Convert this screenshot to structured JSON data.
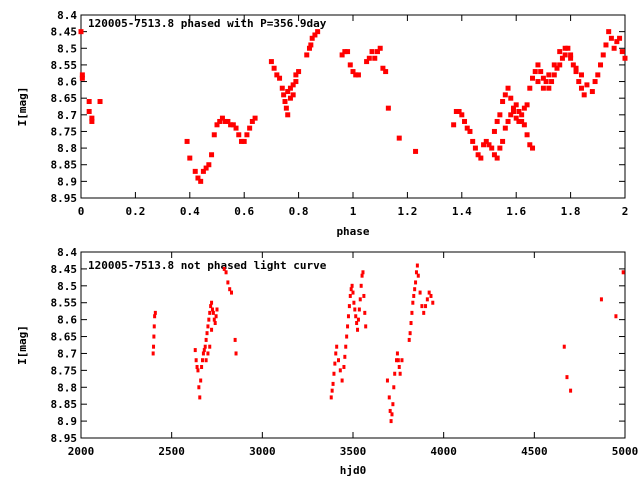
{
  "chart_data": [
    {
      "type": "scatter",
      "title": "120005-7513.8 phased with P=356.9day",
      "xlabel": "phase",
      "ylabel": "I[mag]",
      "xlim": [
        0,
        2
      ],
      "ylim": [
        8.4,
        8.95
      ],
      "y_inverted": true,
      "grid": false,
      "marker_color": "#ff0000",
      "xticks": [
        0,
        0.2,
        0.4,
        0.6,
        0.8,
        1,
        1.2,
        1.4,
        1.6,
        1.8,
        2
      ],
      "xtick_labels": [
        "0",
        "0.2",
        "0.4",
        "0.6",
        "0.8",
        "1",
        "1.2",
        "1.4",
        "1.6",
        "1.8",
        "2"
      ],
      "yticks": [
        8.4,
        8.45,
        8.5,
        8.55,
        8.6,
        8.65,
        8.7,
        8.75,
        8.8,
        8.85,
        8.9,
        8.95
      ],
      "ytick_labels": [
        "8.4",
        "8.45",
        "8.5",
        "8.55",
        "8.6",
        "8.65",
        "8.7",
        "8.75",
        "8.8",
        "8.85",
        "8.9",
        "8.95"
      ],
      "points": [
        [
          0.0,
          8.45
        ],
        [
          0.005,
          8.58
        ],
        [
          0.005,
          8.59
        ],
        [
          0.03,
          8.66
        ],
        [
          0.03,
          8.69
        ],
        [
          0.04,
          8.71
        ],
        [
          0.04,
          8.72
        ],
        [
          0.07,
          8.66
        ],
        [
          0.39,
          8.78
        ],
        [
          0.4,
          8.83
        ],
        [
          0.42,
          8.87
        ],
        [
          0.43,
          8.89
        ],
        [
          0.44,
          8.9
        ],
        [
          0.45,
          8.87
        ],
        [
          0.46,
          8.86
        ],
        [
          0.47,
          8.85
        ],
        [
          0.48,
          8.82
        ],
        [
          0.49,
          8.76
        ],
        [
          0.5,
          8.73
        ],
        [
          0.51,
          8.72
        ],
        [
          0.52,
          8.71
        ],
        [
          0.53,
          8.72
        ],
        [
          0.54,
          8.72
        ],
        [
          0.55,
          8.73
        ],
        [
          0.56,
          8.73
        ],
        [
          0.57,
          8.74
        ],
        [
          0.58,
          8.76
        ],
        [
          0.59,
          8.78
        ],
        [
          0.6,
          8.78
        ],
        [
          0.61,
          8.76
        ],
        [
          0.62,
          8.74
        ],
        [
          0.63,
          8.72
        ],
        [
          0.64,
          8.71
        ],
        [
          0.7,
          8.54
        ],
        [
          0.71,
          8.56
        ],
        [
          0.72,
          8.58
        ],
        [
          0.73,
          8.59
        ],
        [
          0.74,
          8.62
        ],
        [
          0.745,
          8.64
        ],
        [
          0.75,
          8.66
        ],
        [
          0.755,
          8.68
        ],
        [
          0.76,
          8.7
        ],
        [
          0.76,
          8.63
        ],
        [
          0.77,
          8.65
        ],
        [
          0.77,
          8.62
        ],
        [
          0.78,
          8.64
        ],
        [
          0.78,
          8.61
        ],
        [
          0.79,
          8.6
        ],
        [
          0.79,
          8.58
        ],
        [
          0.8,
          8.57
        ],
        [
          0.83,
          8.52
        ],
        [
          0.84,
          8.5
        ],
        [
          0.845,
          8.49
        ],
        [
          0.85,
          8.47
        ],
        [
          0.86,
          8.46
        ],
        [
          0.87,
          8.45
        ],
        [
          0.96,
          8.52
        ],
        [
          0.97,
          8.51
        ],
        [
          0.98,
          8.51
        ],
        [
          0.99,
          8.55
        ],
        [
          1.0,
          8.57
        ],
        [
          1.01,
          8.58
        ],
        [
          1.02,
          8.58
        ],
        [
          1.05,
          8.54
        ],
        [
          1.06,
          8.53
        ],
        [
          1.07,
          8.51
        ],
        [
          1.08,
          8.53
        ],
        [
          1.09,
          8.51
        ],
        [
          1.1,
          8.5
        ],
        [
          1.11,
          8.56
        ],
        [
          1.12,
          8.57
        ],
        [
          1.13,
          8.68
        ],
        [
          1.17,
          8.77
        ],
        [
          1.23,
          8.81
        ],
        [
          1.37,
          8.73
        ],
        [
          1.38,
          8.69
        ],
        [
          1.39,
          8.69
        ],
        [
          1.4,
          8.7
        ],
        [
          1.41,
          8.72
        ],
        [
          1.42,
          8.74
        ],
        [
          1.43,
          8.75
        ],
        [
          1.44,
          8.78
        ],
        [
          1.45,
          8.8
        ],
        [
          1.46,
          8.82
        ],
        [
          1.47,
          8.83
        ],
        [
          1.48,
          8.79
        ],
        [
          1.49,
          8.78
        ],
        [
          1.5,
          8.79
        ],
        [
          1.51,
          8.8
        ],
        [
          1.52,
          8.82
        ],
        [
          1.53,
          8.83
        ],
        [
          1.54,
          8.8
        ],
        [
          1.55,
          8.78
        ],
        [
          1.56,
          8.74
        ],
        [
          1.57,
          8.72
        ],
        [
          1.58,
          8.7
        ],
        [
          1.59,
          8.68
        ],
        [
          1.6,
          8.67
        ],
        [
          1.61,
          8.69
        ],
        [
          1.62,
          8.72
        ],
        [
          1.63,
          8.73
        ],
        [
          1.64,
          8.76
        ],
        [
          1.65,
          8.79
        ],
        [
          1.66,
          8.8
        ],
        [
          1.52,
          8.75
        ],
        [
          1.53,
          8.72
        ],
        [
          1.54,
          8.7
        ],
        [
          1.55,
          8.66
        ],
        [
          1.56,
          8.64
        ],
        [
          1.57,
          8.62
        ],
        [
          1.58,
          8.65
        ],
        [
          1.59,
          8.69
        ],
        [
          1.6,
          8.71
        ],
        [
          1.61,
          8.72
        ],
        [
          1.62,
          8.7
        ],
        [
          1.63,
          8.68
        ],
        [
          1.64,
          8.67
        ],
        [
          1.65,
          8.62
        ],
        [
          1.66,
          8.59
        ],
        [
          1.67,
          8.57
        ],
        [
          1.68,
          8.55
        ],
        [
          1.69,
          8.57
        ],
        [
          1.7,
          8.59
        ],
        [
          1.71,
          8.6
        ],
        [
          1.72,
          8.62
        ],
        [
          1.73,
          8.6
        ],
        [
          1.74,
          8.58
        ],
        [
          1.75,
          8.56
        ],
        [
          1.76,
          8.55
        ],
        [
          1.77,
          8.53
        ],
        [
          1.78,
          8.52
        ],
        [
          1.79,
          8.5
        ],
        [
          1.8,
          8.52
        ],
        [
          1.81,
          8.55
        ],
        [
          1.82,
          8.57
        ],
        [
          1.83,
          8.6
        ],
        [
          1.84,
          8.62
        ],
        [
          1.85,
          8.64
        ],
        [
          1.68,
          8.6
        ],
        [
          1.7,
          8.62
        ],
        [
          1.72,
          8.58
        ],
        [
          1.74,
          8.55
        ],
        [
          1.76,
          8.51
        ],
        [
          1.78,
          8.5
        ],
        [
          1.8,
          8.53
        ],
        [
          1.82,
          8.56
        ],
        [
          1.84,
          8.58
        ],
        [
          1.86,
          8.61
        ],
        [
          1.88,
          8.63
        ],
        [
          1.89,
          8.6
        ],
        [
          1.9,
          8.58
        ],
        [
          1.91,
          8.55
        ],
        [
          1.92,
          8.52
        ],
        [
          1.93,
          8.49
        ],
        [
          1.94,
          8.45
        ],
        [
          1.95,
          8.47
        ],
        [
          1.96,
          8.5
        ],
        [
          1.97,
          8.48
        ],
        [
          1.98,
          8.47
        ],
        [
          1.99,
          8.51
        ],
        [
          2.0,
          8.53
        ]
      ]
    },
    {
      "type": "scatter",
      "title": "120005-7513.8 not phased light curve",
      "xlabel": "hjd0",
      "ylabel": "I[mag]",
      "xlim": [
        2000,
        5000
      ],
      "ylim": [
        8.4,
        8.95
      ],
      "y_inverted": true,
      "grid": false,
      "marker_color": "#ff0000",
      "xticks": [
        2000,
        2500,
        3000,
        3500,
        4000,
        4500,
        5000
      ],
      "xtick_labels": [
        "2000",
        "2500",
        "3000",
        "3500",
        "4000",
        "4500",
        "5000"
      ],
      "yticks": [
        8.4,
        8.45,
        8.5,
        8.55,
        8.6,
        8.65,
        8.7,
        8.75,
        8.8,
        8.85,
        8.9,
        8.95
      ],
      "ytick_labels": [
        "8.4",
        "8.45",
        "8.5",
        "8.55",
        "8.6",
        "8.65",
        "8.7",
        "8.75",
        "8.8",
        "8.85",
        "8.9",
        "8.95"
      ],
      "points": [
        [
          2398,
          8.7
        ],
        [
          2400,
          8.68
        ],
        [
          2402,
          8.65
        ],
        [
          2404,
          8.62
        ],
        [
          2406,
          8.59
        ],
        [
          2410,
          8.58
        ],
        [
          2630,
          8.69
        ],
        [
          2635,
          8.72
        ],
        [
          2640,
          8.74
        ],
        [
          2645,
          8.75
        ],
        [
          2650,
          8.8
        ],
        [
          2655,
          8.83
        ],
        [
          2660,
          8.78
        ],
        [
          2665,
          8.74
        ],
        [
          2670,
          8.72
        ],
        [
          2675,
          8.7
        ],
        [
          2680,
          8.69
        ],
        [
          2685,
          8.68
        ],
        [
          2690,
          8.66
        ],
        [
          2695,
          8.64
        ],
        [
          2700,
          8.62
        ],
        [
          2705,
          8.6
        ],
        [
          2710,
          8.58
        ],
        [
          2715,
          8.56
        ],
        [
          2720,
          8.55
        ],
        [
          2725,
          8.57
        ],
        [
          2730,
          8.58
        ],
        [
          2735,
          8.6
        ],
        [
          2740,
          8.61
        ],
        [
          2745,
          8.59
        ],
        [
          2750,
          8.57
        ],
        [
          2690,
          8.72
        ],
        [
          2700,
          8.7
        ],
        [
          2710,
          8.68
        ],
        [
          2720,
          8.63
        ],
        [
          2790,
          8.45
        ],
        [
          2800,
          8.46
        ],
        [
          2810,
          8.49
        ],
        [
          2820,
          8.51
        ],
        [
          2830,
          8.52
        ],
        [
          2850,
          8.66
        ],
        [
          2855,
          8.7
        ],
        [
          3380,
          8.83
        ],
        [
          3385,
          8.81
        ],
        [
          3390,
          8.79
        ],
        [
          3395,
          8.76
        ],
        [
          3400,
          8.73
        ],
        [
          3405,
          8.7
        ],
        [
          3410,
          8.68
        ],
        [
          3420,
          8.72
        ],
        [
          3430,
          8.75
        ],
        [
          3440,
          8.78
        ],
        [
          3450,
          8.74
        ],
        [
          3455,
          8.71
        ],
        [
          3460,
          8.68
        ],
        [
          3465,
          8.65
        ],
        [
          3470,
          8.62
        ],
        [
          3475,
          8.59
        ],
        [
          3480,
          8.56
        ],
        [
          3485,
          8.53
        ],
        [
          3490,
          8.51
        ],
        [
          3495,
          8.5
        ],
        [
          3500,
          8.52
        ],
        [
          3505,
          8.55
        ],
        [
          3510,
          8.57
        ],
        [
          3515,
          8.59
        ],
        [
          3520,
          8.61
        ],
        [
          3525,
          8.63
        ],
        [
          3530,
          8.6
        ],
        [
          3535,
          8.57
        ],
        [
          3540,
          8.54
        ],
        [
          3545,
          8.5
        ],
        [
          3550,
          8.47
        ],
        [
          3555,
          8.46
        ],
        [
          3560,
          8.53
        ],
        [
          3565,
          8.58
        ],
        [
          3570,
          8.62
        ],
        [
          3690,
          8.78
        ],
        [
          3700,
          8.83
        ],
        [
          3705,
          8.87
        ],
        [
          3710,
          8.9
        ],
        [
          3715,
          8.88
        ],
        [
          3720,
          8.85
        ],
        [
          3725,
          8.8
        ],
        [
          3730,
          8.76
        ],
        [
          3740,
          8.72
        ],
        [
          3745,
          8.7
        ],
        [
          3750,
          8.72
        ],
        [
          3755,
          8.74
        ],
        [
          3760,
          8.76
        ],
        [
          3770,
          8.72
        ],
        [
          3810,
          8.66
        ],
        [
          3815,
          8.64
        ],
        [
          3820,
          8.61
        ],
        [
          3825,
          8.58
        ],
        [
          3830,
          8.55
        ],
        [
          3835,
          8.53
        ],
        [
          3840,
          8.51
        ],
        [
          3845,
          8.49
        ],
        [
          3850,
          8.46
        ],
        [
          3855,
          8.44
        ],
        [
          3860,
          8.47
        ],
        [
          3870,
          8.52
        ],
        [
          3880,
          8.56
        ],
        [
          3890,
          8.58
        ],
        [
          3900,
          8.56
        ],
        [
          3910,
          8.54
        ],
        [
          3920,
          8.52
        ],
        [
          3930,
          8.53
        ],
        [
          3940,
          8.55
        ],
        [
          4665,
          8.68
        ],
        [
          4680,
          8.77
        ],
        [
          4700,
          8.81
        ],
        [
          4870,
          8.54
        ],
        [
          4950,
          8.59
        ],
        [
          4990,
          8.46
        ]
      ]
    }
  ]
}
